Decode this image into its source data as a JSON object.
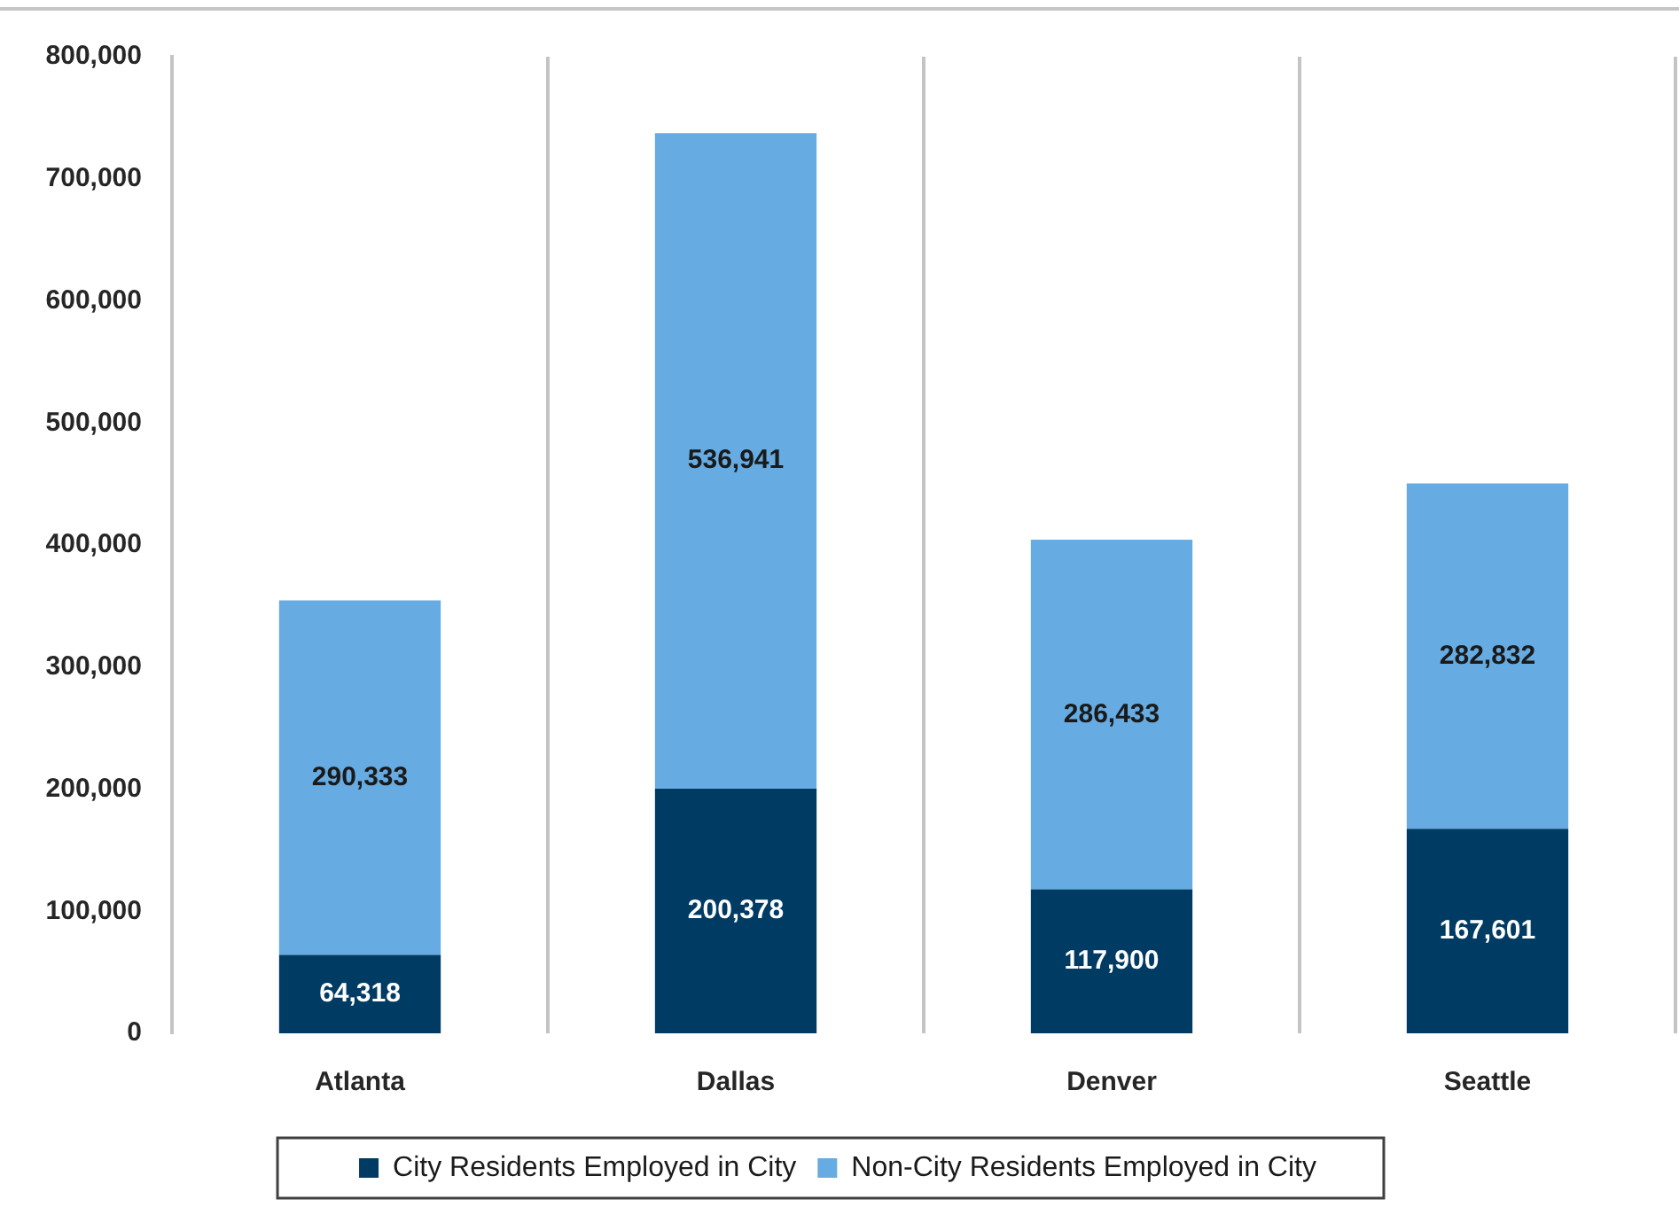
{
  "chart_data": {
    "type": "bar",
    "categories": [
      "Atlanta",
      "Dallas",
      "Denver",
      "Seattle"
    ],
    "series": [
      {
        "name": "City Residents Employed in City",
        "color": "#003b64",
        "values": [
          64318,
          200378,
          117900,
          167601
        ],
        "value_labels": [
          "64,318",
          "200,378",
          "117,900",
          "167,601"
        ]
      },
      {
        "name": "Non-City Residents Employed in City",
        "color": "#66abe1",
        "values": [
          290333,
          536941,
          286433,
          282832
        ],
        "value_labels": [
          "290,333",
          "536,941",
          "286,433",
          "282,832"
        ]
      }
    ],
    "stacked": true,
    "ylim": [
      0,
      800000
    ],
    "yticks": [
      {
        "value": 0,
        "label": "0"
      },
      {
        "value": 100000,
        "label": "100,000"
      },
      {
        "value": 200000,
        "label": "200,000"
      },
      {
        "value": 300000,
        "label": "300,000"
      },
      {
        "value": 400000,
        "label": "400,000"
      },
      {
        "value": 500000,
        "label": "500,000"
      },
      {
        "value": 600000,
        "label": "600,000"
      },
      {
        "value": 700000,
        "label": "700,000"
      },
      {
        "value": 800000,
        "label": "800,000"
      }
    ],
    "grid": "x",
    "legend": "bottom"
  }
}
